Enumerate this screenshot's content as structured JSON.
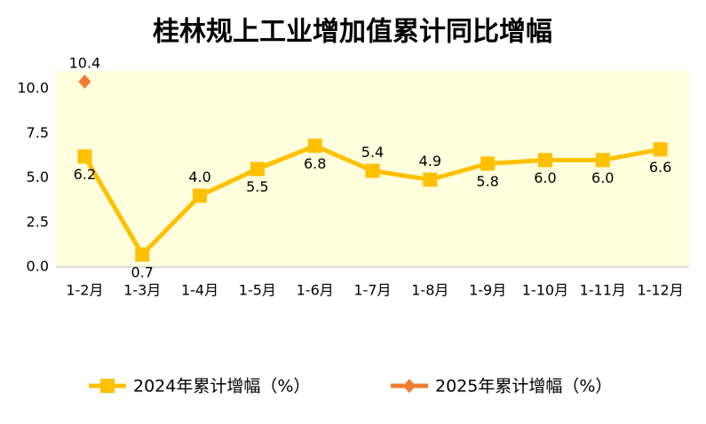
{
  "chart_data": {
    "type": "line",
    "title": "桂林规上工业增加值累计同比增幅",
    "categories": [
      "1-2月",
      "1-3月",
      "1-4月",
      "1-5月",
      "1-6月",
      "1-7月",
      "1-8月",
      "1-9月",
      "1-10月",
      "1-11月",
      "1-12月"
    ],
    "series": [
      {
        "name": "2024年累计增幅（%）",
        "color": "#FFC000",
        "marker": "square",
        "values": [
          6.2,
          0.7,
          4.0,
          5.5,
          6.8,
          5.4,
          4.9,
          5.8,
          6.0,
          6.0,
          6.6
        ],
        "value_labels": [
          "6.2",
          "0.7",
          "4.0",
          "5.5",
          "6.8",
          "5.4",
          "4.9",
          "5.8",
          "6.0",
          "6.0",
          "6.6"
        ]
      },
      {
        "name": "2025年累计增幅（%）",
        "color": "#ED7D31",
        "marker": "diamond",
        "values": [
          10.4,
          null,
          null,
          null,
          null,
          null,
          null,
          null,
          null,
          null,
          null
        ],
        "value_labels": [
          "10.4",
          null,
          null,
          null,
          null,
          null,
          null,
          null,
          null,
          null,
          null
        ]
      }
    ],
    "ylim": [
      0,
      11
    ],
    "yticks": [
      {
        "value": 0,
        "label": "0.0"
      },
      2.5,
      {
        "value": 5,
        "label": "5.0"
      },
      7.5,
      {
        "value": 10,
        "label": "10.0"
      }
    ],
    "grid": false,
    "legend": "bottom",
    "plot_background": "#FFFFDD"
  }
}
